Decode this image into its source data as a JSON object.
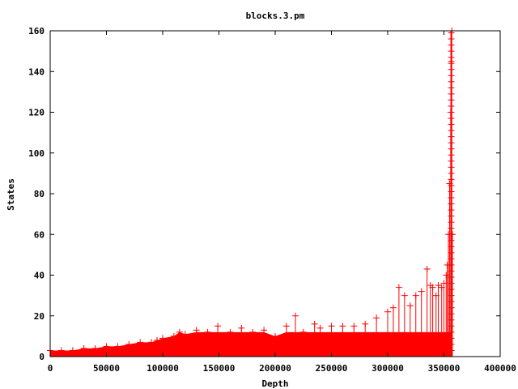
{
  "chart_data": {
    "type": "scatter",
    "title": "blocks.3.pm",
    "xlabel": "Depth",
    "ylabel": "States",
    "xlim": [
      0,
      400000
    ],
    "ylim": [
      0,
      160
    ],
    "xticks": [
      0,
      50000,
      100000,
      150000,
      200000,
      250000,
      300000,
      350000,
      400000
    ],
    "yticks": [
      0,
      20,
      40,
      60,
      80,
      100,
      120,
      140,
      160
    ],
    "grid": false,
    "legend": "none",
    "series_color": "#ff0000",
    "marker": "plus",
    "impulses": true,
    "series": [
      {
        "x": [
          0,
          10000,
          20000,
          30000,
          40000,
          50000,
          60000,
          70000,
          80000,
          90000,
          95000,
          100000,
          110000,
          115000,
          120000,
          130000,
          140000,
          149000,
          160000,
          170000,
          180000,
          190000,
          200000,
          210000,
          218000,
          225000,
          235000,
          240000,
          250000,
          260000,
          270000,
          280000,
          290000,
          300000,
          305000,
          310000,
          315000,
          320000,
          325000,
          330000,
          335000,
          338000,
          340000,
          343000,
          345000,
          348000,
          350000,
          352000,
          353000,
          354000,
          355000,
          356000,
          356500,
          357000,
          357500
        ],
        "y": [
          3,
          3,
          3,
          4,
          4,
          5,
          5,
          6,
          7,
          7,
          8,
          9,
          10,
          12,
          11,
          13,
          12,
          15,
          12,
          14,
          12,
          13,
          10,
          15,
          20,
          12,
          16,
          14,
          15,
          15,
          15,
          16,
          19,
          22,
          24,
          34,
          30,
          25,
          30,
          32,
          43,
          35,
          34,
          30,
          35,
          34,
          36,
          40,
          45,
          60,
          85,
          120,
          145,
          160,
          60
        ]
      }
    ]
  }
}
